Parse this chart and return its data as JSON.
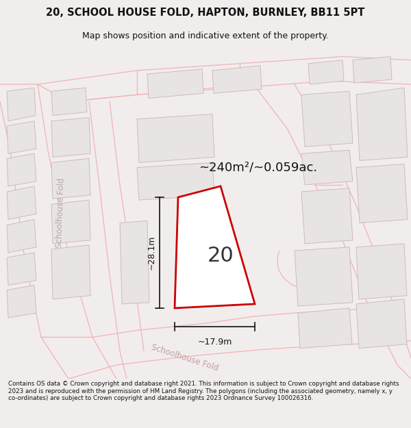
{
  "title_line1": "20, SCHOOL HOUSE FOLD, HAPTON, BURNLEY, BB11 5PT",
  "title_line2": "Map shows position and indicative extent of the property.",
  "area_text": "~240m²/~0.059ac.",
  "label_number": "20",
  "dim_width": "~17.9m",
  "dim_height": "~28.1m",
  "footer_text": "Contains OS data © Crown copyright and database right 2021. This information is subject to Crown copyright and database rights 2023 and is reproduced with the permission of HM Land Registry. The polygons (including the associated geometry, namely x, y co-ordinates) are subject to Crown copyright and database rights 2023 Ordnance Survey 100026316.",
  "bg_color": "#f2eded",
  "map_bg_color": "#ffffff",
  "road_line_color": "#f0b8b8",
  "building_fill_color": "#e8e4e4",
  "building_edge_color": "#ccbcbc",
  "plot_outline_color": "#cc0000",
  "road_label_color": "#c0a0a0",
  "dim_line_color": "#111111",
  "title_color": "#111111",
  "footer_color": "#111111",
  "schoolhouse_fold_label_color": "#b8a8a8",
  "schoolhouse_road_label_color": "#c0a0a0"
}
